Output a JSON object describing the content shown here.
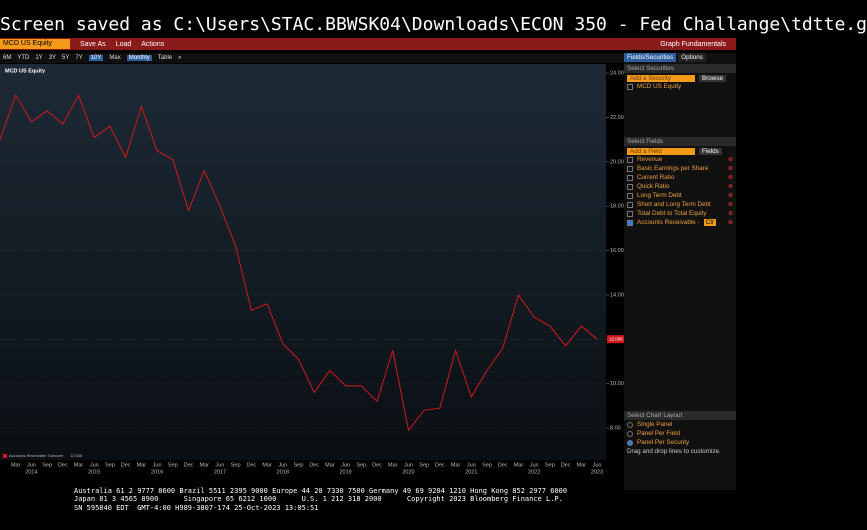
{
  "title_bar": {
    "text": "Screen saved as C:\\Users\\STAC.BBWSK04\\Downloads\\ECON 350 - Fed Challange\\tdtte.g"
  },
  "menu": {
    "security": "MCD US Equity",
    "items": [
      "Save As",
      "Load",
      "Actions"
    ],
    "right": "Graph Fundamentals"
  },
  "toolbar": {
    "ranges": [
      "6M",
      "YTD",
      "1Y",
      "3Y",
      "5Y",
      "7Y",
      "10Y",
      "Max"
    ],
    "period": "Monthly",
    "extra": [
      "Table",
      "»"
    ]
  },
  "side_panel": {
    "tabs": [
      "Fields/Securities",
      "Options"
    ],
    "securities_heading": "Select Securities",
    "security_input": "Add a Security",
    "browse": "Browse",
    "securities": [
      "MCD US Equity"
    ],
    "fields_heading": "Select Fields",
    "field_input": "Add a Field",
    "fields_button": "Fields",
    "fields": [
      "Revenue",
      "Basic Earnings per Share",
      "Current Ratio",
      "Quick Ratio",
      "Long Term Debt",
      "Short and Long Term Debt",
      "Total Debt to Total Equity",
      "Accounts Receivable -"
    ],
    "field_option": "Ctr",
    "layout_heading": "Select Chart Layout",
    "layouts": [
      "Single Panel",
      "Panel Per Field",
      "Panel Per Security"
    ],
    "hint": "Drag and drop lines to customize."
  },
  "footer": {
    "lines": [
      "Australia 61 2 9777 8600 Brazil 5511 2395 9000 Europe 44 20 7330 7500 Germany 49 69 9204 1210 Hong Kong 852 2977 6000",
      "Japan 81 3 4565 8900      Singapore 65 6212 1000      U.S. 1 212 318 2000      Copyright 2023 Bloomberg Finance L.P.",
      "SN 595840 EDT  GMT-4:00 H989-3807-174 25-Oct-2023 13:05:51"
    ]
  },
  "chart_data": {
    "type": "line",
    "title": "MCD US Equity",
    "categories": [
      null,
      "Mar",
      "Jun",
      "Sep",
      "Dec",
      "Mar",
      "Jun",
      "Sep",
      "Dec",
      "Mar",
      "Jun",
      "Sep",
      "Dec",
      "Mar",
      "Jun",
      "Sep",
      "Dec",
      "Mar",
      "Jun",
      "Sep",
      "Dec",
      "Mar",
      "Jun",
      "Sep",
      "Dec",
      "Mar",
      "Jun",
      "Sep",
      "Dec",
      "Mar",
      "Jun",
      "Sep",
      "Dec",
      "Mar",
      "Jun",
      "Sep",
      "Dec",
      "Mar",
      "Jun"
    ],
    "years": [
      "2014",
      "2015",
      "2016",
      "2017",
      "2018",
      "2019",
      "2020",
      "2021",
      "2022",
      "2023"
    ],
    "series": [
      {
        "name": "Accounts Receivable Turnover",
        "color": "#d0191e",
        "values": [
          21.0,
          23.0,
          21.8,
          22.3,
          21.7,
          23.0,
          21.1,
          21.6,
          20.2,
          22.5,
          20.5,
          20.1,
          17.8,
          19.6,
          18.0,
          16.2,
          13.3,
          13.6,
          11.8,
          11.1,
          9.6,
          10.6,
          9.9,
          9.9,
          9.2,
          11.5,
          7.9,
          8.8,
          8.9,
          11.5,
          9.4,
          10.6,
          11.6,
          14.0,
          13.0,
          12.6,
          11.7,
          12.6,
          12.006
        ]
      }
    ],
    "ylim": [
      6.56,
      24.41
    ],
    "yticks": [
      {
        "value": 8,
        "label": "8.00"
      },
      {
        "value": 10,
        "label": "10.00"
      },
      {
        "value": 12,
        "label": "12.00"
      },
      {
        "value": 14,
        "label": "14.00"
      },
      {
        "value": 16,
        "label": "16.00"
      },
      {
        "value": 18,
        "label": "18.00"
      },
      {
        "value": 20,
        "label": "20.00"
      },
      {
        "value": 22,
        "label": "22.00"
      },
      {
        "value": 24,
        "label": "24.00"
      }
    ],
    "grid": true
  }
}
